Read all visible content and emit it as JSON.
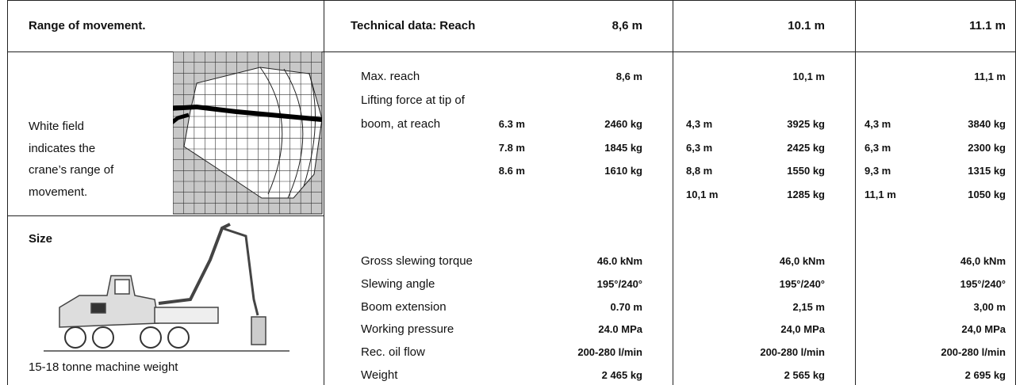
{
  "header": {
    "left": "Range of movement.",
    "tech": "Technical data: Reach",
    "cols": [
      "8,6 m",
      "10.1 m",
      "11.1 m"
    ]
  },
  "range": {
    "description": [
      "White field",
      "indicates the",
      "crane’s range of",
      "movement."
    ]
  },
  "size": {
    "title": "Size",
    "caption": "15-18 tonne machine weight"
  },
  "specs": {
    "max_reach": {
      "label": "Max. reach",
      "values": [
        "8,6 m",
        "10,1 m",
        "11,1 m"
      ]
    },
    "lifting": {
      "label": [
        "Lifting force at tip of",
        "boom, at reach"
      ],
      "columns": [
        [
          [
            "6.3 m",
            "2460 kg"
          ],
          [
            "7.8 m",
            "1845 kg"
          ],
          [
            "8.6 m",
            "1610 kg"
          ]
        ],
        [
          [
            "4,3 m",
            "3925 kg"
          ],
          [
            "6,3 m",
            "2425 kg"
          ],
          [
            "8,8 m",
            "1550 kg"
          ],
          [
            "10,1 m",
            "1285 kg"
          ]
        ],
        [
          [
            "4,3 m",
            "3840 kg"
          ],
          [
            "6,3 m",
            "2300 kg"
          ],
          [
            "9,3 m",
            "1315 kg"
          ],
          [
            "11,1 m",
            "1050 kg"
          ]
        ]
      ]
    },
    "rows": [
      {
        "label": "Gross slewing torque",
        "values": [
          "46.0 kNm",
          "46,0 kNm",
          "46,0 kNm"
        ]
      },
      {
        "label": "Slewing angle",
        "values": [
          "195°/240°",
          "195°/240°",
          "195°/240°"
        ]
      },
      {
        "label": "Boom extension",
        "values": [
          "0.70 m",
          "2,15 m",
          "3,00 m"
        ]
      },
      {
        "label": "Working pressure",
        "values": [
          "24.0 MPa",
          "24,0 MPa",
          "24,0 MPa"
        ]
      },
      {
        "label": "Rec. oil flow",
        "values": [
          "200-280 l/min",
          "200-280 l/min",
          "200-280 l/min"
        ]
      },
      {
        "label": "Weight",
        "values": [
          "2 465 kg",
          "2 565 kg",
          "2 695 kg"
        ]
      }
    ]
  }
}
